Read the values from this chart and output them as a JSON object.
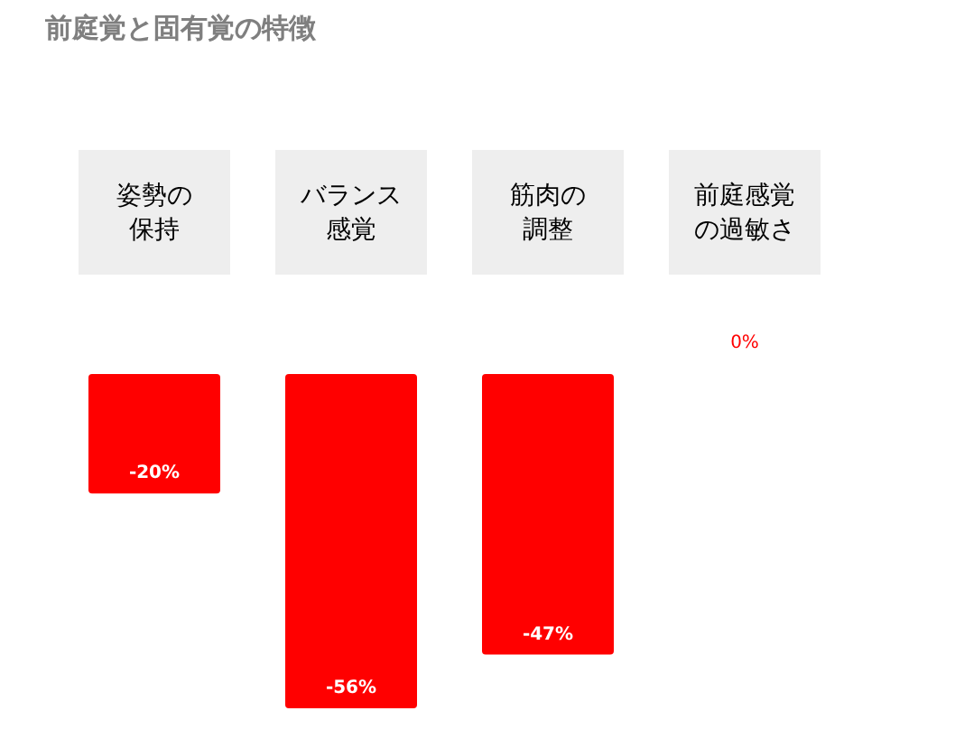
{
  "chart_data": {
    "type": "bar",
    "title": "前庭覚と固有覚の特徴",
    "categories": [
      "姿勢の保持",
      "バランス感覚",
      "筋肉の調整",
      "前庭感覚の過敏さ"
    ],
    "values": [
      -20,
      -56,
      -47,
      0
    ],
    "color": "#ff0000",
    "value_labels": [
      "-20%",
      "-56%",
      "-47%",
      "0%"
    ],
    "grid": false
  }
}
